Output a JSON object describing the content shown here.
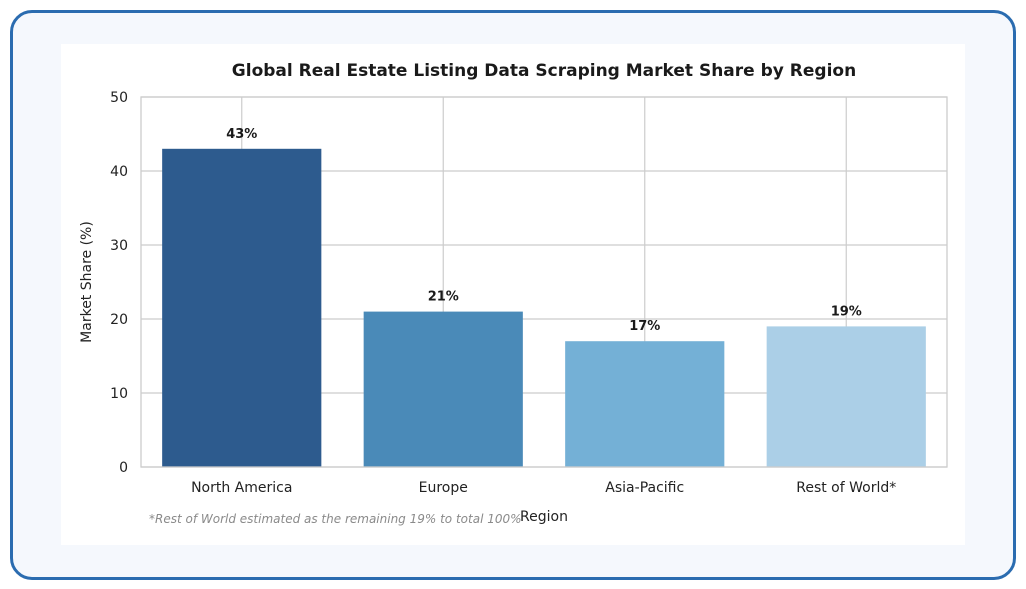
{
  "chart_data": {
    "type": "bar",
    "title": "Global Real Estate Listing Data Scraping Market Share by Region",
    "xlabel": "Region",
    "ylabel": "Market Share (%)",
    "categories": [
      "North America",
      "Europe",
      "Asia-Pacific",
      "Rest of World*"
    ],
    "values": [
      43,
      21,
      17,
      19
    ],
    "data_labels": [
      "43%",
      "21%",
      "17%",
      "19%"
    ],
    "colors": [
      "#2d5b8e",
      "#4a8ab8",
      "#74b0d6",
      "#abcfe7"
    ],
    "ylim": [
      0,
      50
    ],
    "yticks": [
      0,
      10,
      20,
      30,
      40,
      50
    ],
    "grid": true,
    "footnote": "*Rest of World estimated as the remaining 19% to total 100%"
  },
  "colors": {
    "frame_border": "#2b6cb0",
    "frame_background": "#f5f8fd",
    "gridline": "#cccccc"
  }
}
